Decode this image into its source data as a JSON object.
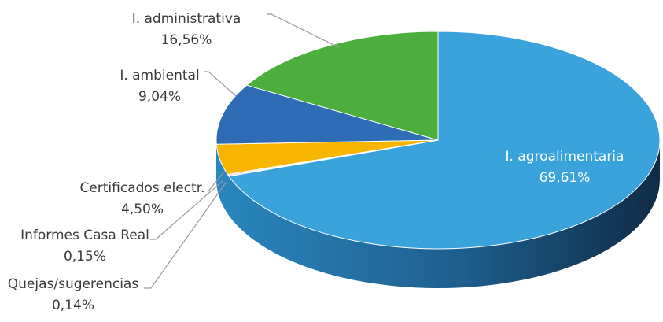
{
  "chart_data": {
    "type": "pie",
    "title": "",
    "series": [
      {
        "label_name": "I. agroalimentaria",
        "value_label": "69,61%",
        "value": 69.61,
        "color": "#3aa3dc"
      },
      {
        "label_name": "Quejas/sugerencias",
        "value_label": "0,14%",
        "value": 0.14,
        "color": "#c25a8f"
      },
      {
        "label_name": "Informes Casa Real",
        "value_label": "0,15%",
        "value": 0.15,
        "color": "#8d8d8d"
      },
      {
        "label_name": "Certificados electr.",
        "value_label": "4,50%",
        "value": 4.5,
        "color": "#f7b500"
      },
      {
        "label_name": "I. ambiental",
        "value_label": "9,04%",
        "value": 9.04,
        "color": "#2e6db6"
      },
      {
        "label_name": "I. administrativa",
        "value_label": "16,56%",
        "value": 16.56,
        "color": "#4cae3c"
      }
    ],
    "side_color": "#1d6ea0",
    "side_dark": "#12395a"
  }
}
